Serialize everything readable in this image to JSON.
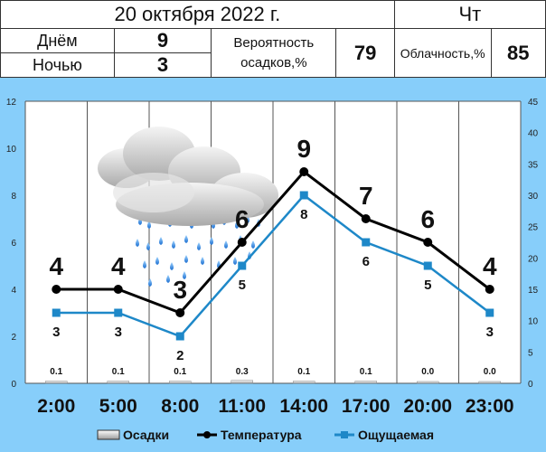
{
  "header": {
    "date": "20 октября 2022 г.",
    "weekday": "Чт",
    "day_label": "Днём",
    "day_value": "9",
    "night_label": "Ночью",
    "night_value": "3",
    "precip_prob_label_1": "Вероятность",
    "precip_prob_label_2": "осадков,%",
    "precip_prob_value": "79",
    "cloud_label": "Облачность,%",
    "cloud_value": "85"
  },
  "icon": "cloud-rain-icon",
  "chart_data": {
    "type": "line",
    "categories": [
      "2:00",
      "5:00",
      "8:00",
      "11:00",
      "14:00",
      "17:00",
      "20:00",
      "23:00"
    ],
    "left_axis": {
      "ylim": [
        0,
        12
      ],
      "ticks": [
        0,
        2,
        4,
        6,
        8,
        10,
        12
      ]
    },
    "right_axis": {
      "ylim": [
        0,
        45
      ],
      "ticks": [
        0,
        5,
        10,
        15,
        20,
        25,
        30,
        35,
        40,
        45
      ]
    },
    "series": [
      {
        "name": "Температура",
        "values": [
          4,
          4,
          3,
          6,
          9,
          7,
          6,
          4
        ],
        "color": "#000000",
        "marker": "circle"
      },
      {
        "name": "Ощущаемая",
        "values": [
          3,
          3,
          2,
          5,
          8,
          6,
          5,
          3
        ],
        "color": "#1e88c8",
        "marker": "square"
      }
    ],
    "precipitation": {
      "name": "Осадки",
      "values": [
        "0.1",
        "0.1",
        "0.1",
        "0.3",
        "0.1",
        "0.1",
        "0.0",
        "0.0"
      ]
    },
    "grid": true,
    "legend": {
      "position": "bottom",
      "items": [
        "Осадки",
        "Температура",
        "Ощущаемая"
      ]
    }
  }
}
